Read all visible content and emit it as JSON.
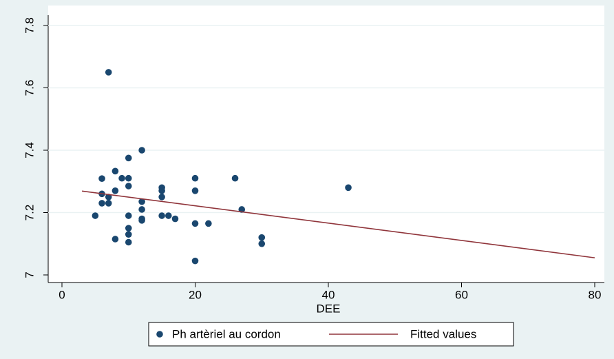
{
  "chart_data": {
    "type": "scatter",
    "x_label": "DEE",
    "xlim": [
      0,
      80
    ],
    "xticks": [
      0,
      20,
      40,
      60,
      80
    ],
    "ylim": [
      7,
      7.8
    ],
    "yticks": [
      7,
      7.2,
      7.4,
      7.6,
      7.8
    ],
    "grid": true,
    "legend": "bottom",
    "series": [
      {
        "name": "Ph artèriel au cordon",
        "kind": "scatter",
        "color": "#1a476f",
        "x": [
          7,
          12,
          10,
          8,
          9,
          10,
          6,
          20,
          26,
          43,
          15,
          15,
          10,
          8,
          20,
          6,
          7,
          15,
          6,
          7,
          12,
          12,
          27,
          5,
          10,
          15,
          16,
          17,
          12,
          12,
          10,
          20,
          22,
          10,
          8,
          30,
          30,
          10,
          20
        ],
        "values": [
          7.65,
          7.4,
          7.375,
          7.333,
          7.31,
          7.31,
          7.309,
          7.31,
          7.31,
          7.28,
          7.28,
          7.27,
          7.285,
          7.27,
          7.27,
          7.26,
          7.25,
          7.25,
          7.23,
          7.23,
          7.235,
          7.21,
          7.21,
          7.19,
          7.19,
          7.19,
          7.19,
          7.18,
          7.18,
          7.175,
          7.15,
          7.165,
          7.165,
          7.13,
          7.115,
          7.12,
          7.1,
          7.105,
          7.045
        ]
      },
      {
        "name": "Fitted values",
        "kind": "line",
        "color": "#90353b",
        "x": [
          3,
          80
        ],
        "values": [
          7.269,
          7.055
        ]
      }
    ]
  }
}
